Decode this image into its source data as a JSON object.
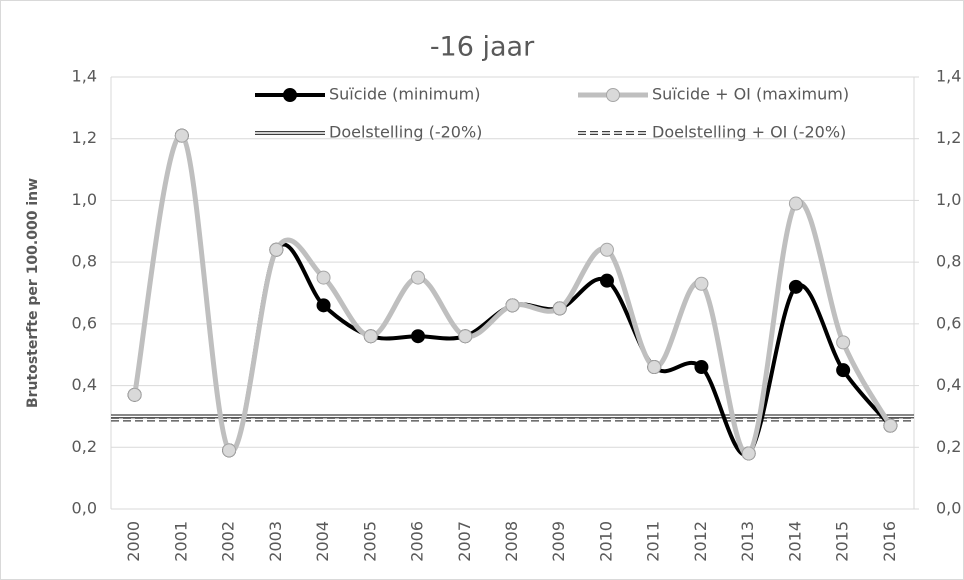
{
  "chart_data": {
    "type": "line",
    "title": "-16 jaar",
    "y_label": "Brutosterfte per 100.000 inw",
    "categories": [
      "2000",
      "2001",
      "2002",
      "2003",
      "2004",
      "2005",
      "2006",
      "2007",
      "2008",
      "2009",
      "2010",
      "2011",
      "2012",
      "2013",
      "2014",
      "2015",
      "2016"
    ],
    "series": [
      {
        "name": "Suïcide (minimum)",
        "color": "#000000",
        "values": [
          0.37,
          1.21,
          0.19,
          0.84,
          0.66,
          0.56,
          0.56,
          0.56,
          0.66,
          0.65,
          0.74,
          0.46,
          0.46,
          0.18,
          0.72,
          0.45,
          0.27
        ]
      },
      {
        "name": "Suïcide + OI (maximum)",
        "color": "#bfbfbf",
        "values": [
          0.37,
          1.21,
          0.19,
          0.84,
          0.75,
          0.56,
          0.75,
          0.56,
          0.66,
          0.65,
          0.84,
          0.46,
          0.73,
          0.18,
          0.99,
          0.54,
          0.27
        ]
      }
    ],
    "targets": [
      {
        "name": "Doelstelling (-20%)",
        "color": "#404040",
        "value": 0.3
      },
      {
        "name": "Doelstelling + OI (-20%)",
        "color": "#404040",
        "value": 0.29
      }
    ],
    "ylim": [
      0,
      1.4
    ],
    "yticks": [
      {
        "value": 0,
        "label": "0,0"
      },
      {
        "value": 0.2,
        "label": "0,2"
      },
      {
        "value": 0.4,
        "label": "0,4"
      },
      {
        "value": 0.6,
        "label": "0,6"
      },
      {
        "value": 0.8,
        "label": "0,8"
      },
      {
        "value": 1.0,
        "label": "1,0"
      },
      {
        "value": 1.2,
        "label": "1,2"
      },
      {
        "value": 1.4,
        "label": "1,4"
      }
    ],
    "y2lim": [
      0,
      1.4
    ],
    "y2ticks": [
      {
        "value": 0,
        "label": "0,0"
      },
      {
        "value": 0.2,
        "label": "0,2"
      },
      {
        "value": 0.4,
        "label": "0,4"
      },
      {
        "value": 0.6,
        "label": "0,6"
      },
      {
        "value": 0.8,
        "label": "0,8"
      },
      {
        "value": 1.0,
        "label": "1,0"
      },
      {
        "value": 1.2,
        "label": "1,2"
      },
      {
        "value": 1.4,
        "label": "1,4"
      }
    ],
    "grid": true,
    "smooth": true
  }
}
